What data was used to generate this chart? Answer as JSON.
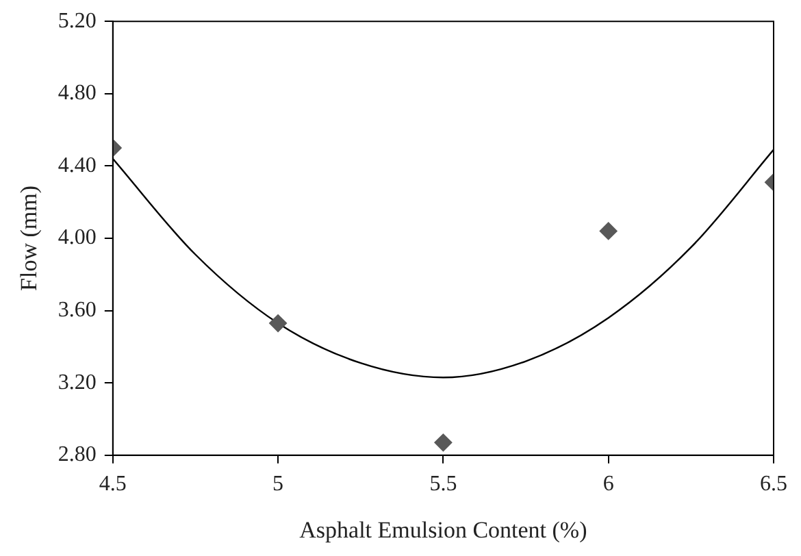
{
  "chart_data": {
    "type": "scatter",
    "xlabel": "Asphalt Emulsion Content (%)",
    "ylabel": "Flow (mm)",
    "xlim": [
      4.5,
      6.5
    ],
    "xticks": [
      4.5,
      5,
      5.5,
      6,
      6.5
    ],
    "ylim": [
      2.8,
      5.2
    ],
    "yticks": [
      {
        "value": 2.8,
        "label": "2.80"
      },
      {
        "value": 3.2,
        "label": "3.20"
      },
      {
        "value": 3.6,
        "label": "3.60"
      },
      {
        "value": 4.0,
        "label": "4.00"
      },
      {
        "value": 4.4,
        "label": "4.40"
      },
      {
        "value": 4.8,
        "label": "4.80"
      },
      {
        "value": 5.2,
        "label": "5.20"
      }
    ],
    "grid": false,
    "legend": false,
    "marker": "diamond",
    "series": [
      {
        "color": "#595959",
        "x": [
          4.5,
          5,
          5.5,
          6,
          6.5
        ],
        "values": [
          4.5,
          3.53,
          2.87,
          4.04,
          4.31
        ]
      },
      {
        "type": "line",
        "color": "#000000",
        "marker": "none",
        "x": [
          4.5,
          4.75,
          5,
          5.25,
          5.5,
          5.75,
          6,
          6.25,
          6.5
        ],
        "values": [
          4.44,
          3.91,
          3.53,
          3.31,
          3.23,
          3.32,
          3.56,
          3.95,
          4.49
        ]
      }
    ]
  }
}
